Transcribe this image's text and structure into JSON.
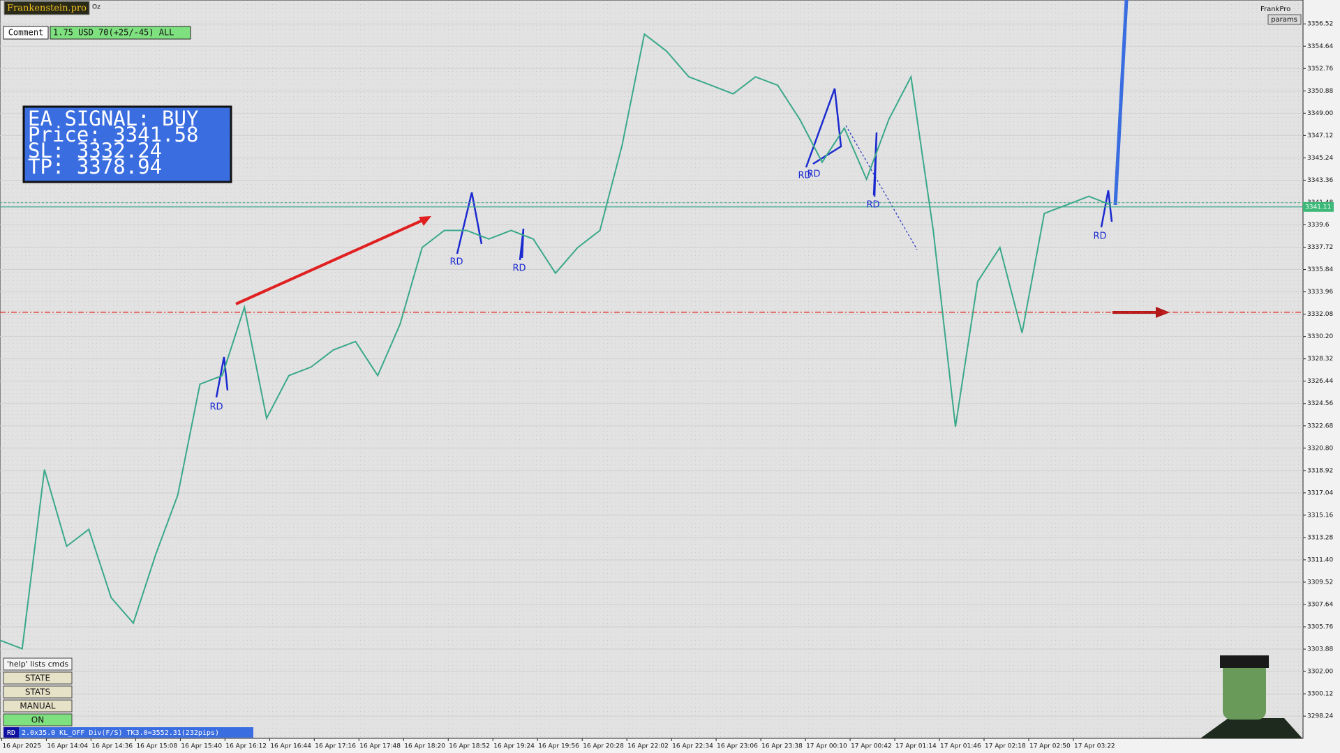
{
  "header": {
    "brand": "Frankenstein.pro",
    "symbol": "Oz",
    "comment_label": "Comment",
    "comment_value": "1.75 USD 70(+25/-45) ALL",
    "profile": "FrankPro",
    "params": "params"
  },
  "signal": {
    "line1": "EA SIGNAL: BUY",
    "line2": "Price: 3341.58",
    "line3": "SL:     3332.24",
    "line4": "TP:     3378.94"
  },
  "controls": {
    "help": "'help' lists cmds",
    "state": "STATE",
    "stats": "STATS",
    "manual": "MANUAL",
    "on": "ON"
  },
  "status": {
    "tag": "RD",
    "text": "2.0x35.0 KL_OFF Div(F/S) TK3.0=3552.31(232pips)"
  },
  "chart_data": {
    "type": "line",
    "categories": [
      "16 Apr 2025",
      "16 Apr 14:04",
      "16 Apr 14:36",
      "16 Apr 15:08",
      "16 Apr 15:40",
      "16 Apr 16:12",
      "16 Apr 16:44",
      "16 Apr 17:16",
      "16 Apr 17:48",
      "16 Apr 18:20",
      "16 Apr 18:52",
      "16 Apr 19:24",
      "16 Apr 19:56",
      "16 Apr 20:28",
      "16 Apr 22:02",
      "16 Apr 22:34",
      "16 Apr 23:06",
      "16 Apr 23:38",
      "17 Apr 00:10",
      "17 Apr 00:42",
      "17 Apr 01:14",
      "17 Apr 01:46",
      "17 Apr 02:18",
      "17 Apr 02:50",
      "17 Apr 03:22"
    ],
    "price": {
      "color": "#3aa88a",
      "values": [
        3304.63,
        3303.91,
        3319.0,
        3312.54,
        3313.97,
        3308.22,
        3306.07,
        3311.82,
        3316.85,
        3326.19,
        3326.91,
        3332.66,
        3323.32,
        3326.91,
        3327.63,
        3329.07,
        3329.78,
        3326.91,
        3331.22,
        3337.69,
        3339.13,
        3339.13,
        3338.41,
        3339.13,
        3338.41,
        3335.53,
        3337.69,
        3339.13,
        3346.31,
        3355.66,
        3354.22,
        3352.06,
        3351.35,
        3350.63,
        3352.06,
        3351.35,
        3348.47,
        3344.88,
        3347.75,
        3343.44,
        3348.47,
        3352.06,
        3339.13,
        3322.6,
        3334.82,
        3337.69,
        3330.5,
        3340.56,
        3341.28,
        3342.0,
        3341.28
      ]
    },
    "price_line": 3341.11,
    "stop_line": 3332.24,
    "annotations": [
      "RD",
      "RD",
      "RD",
      "RD",
      "RD",
      "RD",
      "RD"
    ],
    "ylim": [
      3296.37,
      3358.53
    ],
    "yticks": [
      3298.24,
      {
        "value": 3300.12,
        "label": "3300.12"
      },
      {
        "value": 3302.0,
        "label": "3302.00"
      },
      3303.88,
      3305.76,
      3307.64,
      3309.52,
      {
        "value": 3311.4,
        "label": "3311.40"
      },
      3313.28,
      3315.16,
      3317.04,
      3318.92,
      {
        "value": 3320.8,
        "label": "3320.80"
      },
      3322.68,
      3324.56,
      3326.44,
      3328.32,
      {
        "value": 3330.2,
        "label": "3330.20"
      },
      3332.08,
      3333.96,
      3335.84,
      3337.72,
      3339.6,
      3341.48,
      3343.36,
      3345.24,
      3347.12,
      {
        "value": 3349.0,
        "label": "3349.00"
      },
      3350.88,
      3352.76,
      3354.64,
      3356.52
    ],
    "grid": true
  }
}
